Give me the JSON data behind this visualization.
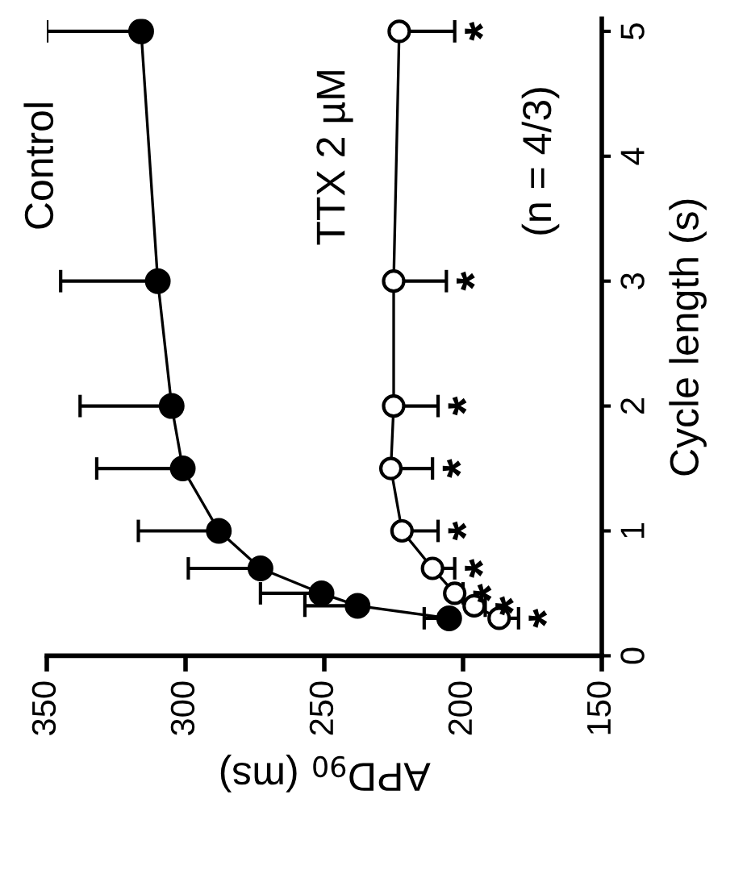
{
  "chart_data": {
    "type": "line",
    "orientation": "horizontal",
    "xlabel": "APD$_{90}$ (ms)",
    "ylabel": "Cycle length (s)",
    "xlim": [
      350,
      150
    ],
    "xticks": [
      350,
      300,
      250,
      200,
      150
    ],
    "ylim": [
      0,
      5.1
    ],
    "yticks": [
      0,
      1,
      2,
      3,
      4,
      5
    ],
    "marker": "circle",
    "grid": false,
    "legend": false,
    "series": [
      {
        "name": "Control",
        "color": "#000000",
        "x": [
          0.3,
          0.4,
          0.5,
          0.7,
          1,
          1.5,
          2,
          3,
          5
        ],
        "values": [
          205,
          238,
          251,
          273,
          288,
          301,
          305,
          310,
          316
        ],
        "errors": [
          [
            205,
            214
          ],
          [
            238,
            257
          ],
          [
            251,
            273
          ],
          [
            273,
            299
          ],
          [
            288,
            317
          ],
          [
            301,
            332
          ],
          [
            305,
            338
          ],
          [
            310,
            345
          ],
          [
            316,
            350
          ]
        ]
      },
      {
        "name": "TTX 2 µM",
        "color": "#000000",
        "x": [
          0.3,
          0.4,
          0.5,
          0.7,
          1,
          1.5,
          2,
          3,
          5
        ],
        "values": [
          187,
          196,
          203,
          211,
          222,
          226,
          225,
          225,
          223
        ],
        "errors": [
          [
            180,
            187
          ],
          [
            192,
            196
          ],
          [
            200,
            203
          ],
          [
            203,
            211
          ],
          [
            209,
            222
          ],
          [
            211,
            226
          ],
          [
            209,
            225
          ],
          [
            206,
            225
          ],
          [
            203,
            223
          ]
        ]
      }
    ],
    "annotations": [
      "(n = 4/3)",
      "*",
      "*",
      "*",
      "*",
      "*",
      "*",
      "*",
      "*",
      "*"
    ]
  }
}
